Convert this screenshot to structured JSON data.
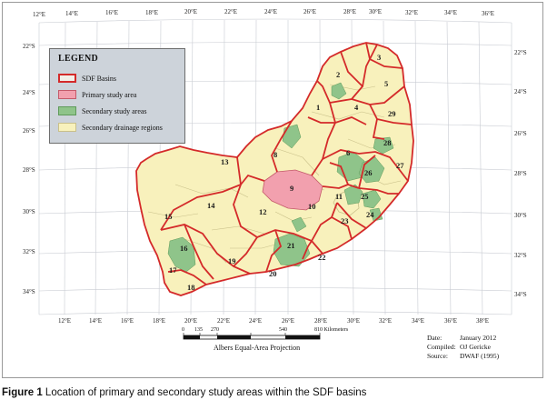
{
  "map": {
    "lon_labels_top": [
      "12°E",
      "14°E",
      "16°E",
      "18°E",
      "20°E",
      "22°E",
      "24°E",
      "26°E",
      "28°E",
      "30°E",
      "32°E",
      "34°E",
      "36°E"
    ],
    "lon_labels_bottom": [
      "12°E",
      "14°E",
      "16°E",
      "18°E",
      "20°E",
      "22°E",
      "24°E",
      "26°E",
      "28°E",
      "30°E",
      "32°E",
      "34°E",
      "36°E",
      "38°E"
    ],
    "lat_labels_left": [
      "22°S",
      "24°S",
      "26°S",
      "28°S",
      "30°S",
      "32°S",
      "34°S"
    ],
    "lat_labels_right": [
      "22°S",
      "24°S",
      "26°S",
      "28°S",
      "30°S",
      "32°S",
      "34°S"
    ],
    "region_numbers": [
      "1",
      "2",
      "3",
      "4",
      "5",
      "6",
      "8",
      "9",
      "10",
      "11",
      "12",
      "13",
      "14",
      "15",
      "16",
      "17",
      "18",
      "19",
      "20",
      "21",
      "22",
      "23",
      "24",
      "25",
      "26",
      "27",
      "28",
      "29"
    ],
    "colors": {
      "basin_outline": "#d42a2a",
      "primary_fill": "#f2a0ae",
      "secondary_fill": "#8fc48a",
      "drainage_fill": "#f8f1bc",
      "drainage_line": "#c9c08a"
    }
  },
  "legend": {
    "title": "LEGEND",
    "items": [
      {
        "label": "SDF Basins"
      },
      {
        "label": "Primary study area"
      },
      {
        "label": "Secondary study areas"
      },
      {
        "label": "Secondary drainage regions"
      }
    ]
  },
  "scale": {
    "labels": [
      "0",
      "135",
      "270",
      "540",
      "810 Kilometers"
    ],
    "projection": "Albers Equal-Area Projection"
  },
  "meta": {
    "date_key": "Date:",
    "date_val": "January 2012",
    "compiled_key": "Compiled:",
    "compiled_val": "OJ Gericke",
    "source_key": "Source:",
    "source_val": "DWAF (1995)"
  },
  "caption": {
    "label": "Figure 1",
    "text": " Location of primary and secondary study areas within the SDF basins"
  }
}
